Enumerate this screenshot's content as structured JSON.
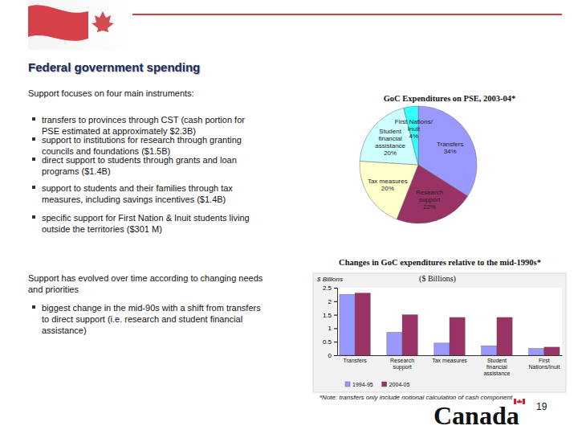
{
  "page": {
    "title": "Federal government spending",
    "intro": "Support focuses on four main instruments:",
    "bullets": [
      [
        "transfers to provinces through CST (cash portion for",
        "PSE estimated at approximately $2.3B)"
      ],
      [
        "support to institutions for research through granting",
        "councils and foundations  ($1.5B)"
      ],
      [
        "direct support to students through grants and loan",
        "programs ($1.4B)"
      ],
      [
        "support to students and their families through tax",
        "measures, including savings incentives ($1.4B)"
      ],
      [
        "specific support for First Nation & Inuit students living",
        "outside the territories ($301 M)"
      ]
    ],
    "evolution": [
      "Support has evolved over time according to changing needs",
      "and priorities"
    ],
    "evolution_bullets": [
      [
        "biggest change in the mid-90s with a shift from transfers",
        "to direct support (i.e. research and student financial",
        "assistance)"
      ]
    ],
    "note": "*Note: transfers only include notional calculation of cash component",
    "page_number": "19",
    "wordmark": "Canada"
  },
  "chart_data": [
    {
      "type": "pie",
      "title": "GoC Expenditures on PSE, 2003-04*",
      "categories": [
        "Transfers",
        "Research\nsupport",
        "Tax measures",
        "Student\nfinancial\nassistance",
        "First Nations/\nInuit"
      ],
      "values": [
        34,
        22,
        20,
        20,
        4
      ],
      "value_labels": [
        "34%",
        "22%",
        "20%",
        "20%",
        "4%"
      ],
      "colors": [
        "#9999ff",
        "#993366",
        "#ffffcc",
        "#ccffff",
        "#33ffff"
      ],
      "data_labels": true
    },
    {
      "type": "bar",
      "title": "Changes in GoC expenditures relative to the mid-1990s*",
      "subtitle": "($ Billions)",
      "y_label": "$ Billions",
      "categories": [
        "Transfers",
        "Research\nsupport",
        "Tax measures",
        "Student\nfinancial\nassistance",
        "First\nNations/Inuit"
      ],
      "series": [
        {
          "name": "1994-95",
          "color": "#9999ff",
          "values": [
            2.25,
            0.85,
            0.45,
            0.35,
            0.25
          ]
        },
        {
          "name": "2004-05",
          "color": "#993366",
          "values": [
            2.3,
            1.5,
            1.4,
            1.4,
            0.3
          ]
        }
      ],
      "ylim": [
        0,
        2.5
      ],
      "yticks": [
        0,
        0.5,
        1,
        1.5,
        2,
        2.5
      ],
      "grid": false,
      "legend": "bottom"
    }
  ]
}
